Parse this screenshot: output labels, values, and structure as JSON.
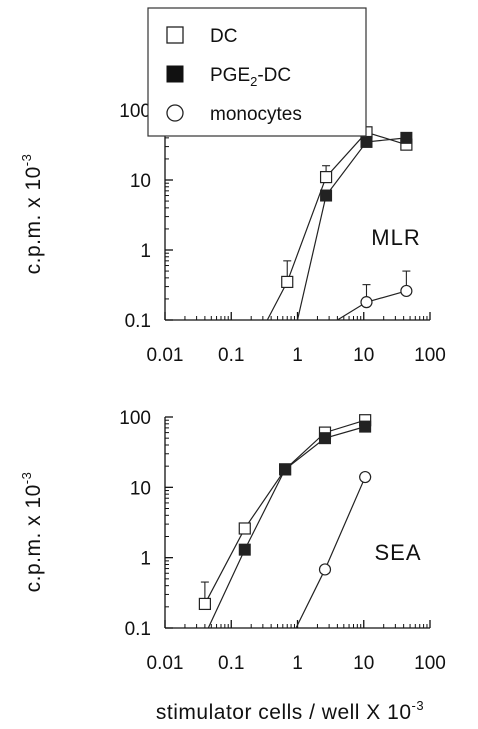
{
  "chart_data": [
    {
      "type": "line",
      "panel_label": "MLR",
      "scale": {
        "x": "log",
        "y": "log"
      },
      "xlim": [
        0.01,
        100
      ],
      "ylim": [
        0.1,
        100
      ],
      "x_ticks": [
        "0.01",
        "0.1",
        "1",
        "10",
        "100"
      ],
      "y_ticks": [
        "0.1",
        "1",
        "10",
        "100"
      ],
      "ylabel": {
        "base": "c.p.m. x 10",
        "sup": "-3"
      },
      "legend": {
        "placement": "top-left",
        "entries": [
          {
            "label": "DC",
            "marker": "open-square"
          },
          {
            "label_parts": [
              "PGE",
              "2",
              "-DC"
            ],
            "marker": "filled-square"
          },
          {
            "label": "monocytes",
            "marker": "open-circle"
          }
        ]
      },
      "series": [
        {
          "name": "DC",
          "marker": "open-square",
          "x": [
            0.35,
            0.7,
            2.7,
            11,
            44
          ],
          "y": [
            0.1,
            0.35,
            11,
            48,
            32
          ],
          "error_up": [
            null,
            0.7,
            16,
            null,
            null
          ]
        },
        {
          "name": "PGE2-DC",
          "marker": "filled-square",
          "x": [
            1,
            2.7,
            11,
            44
          ],
          "y": [
            0.1,
            6,
            35,
            40
          ],
          "error_up": [
            null,
            null,
            null,
            null
          ]
        },
        {
          "name": "monocytes",
          "marker": "open-circle",
          "x": [
            4,
            11,
            44
          ],
          "y": [
            0.1,
            0.18,
            0.26
          ],
          "error_up": [
            null,
            0.32,
            0.5
          ]
        }
      ]
    },
    {
      "type": "line",
      "panel_label": "SEA",
      "scale": {
        "x": "log",
        "y": "log"
      },
      "xlim": [
        0.01,
        100
      ],
      "ylim": [
        0.1,
        100
      ],
      "x_ticks": [
        "0.01",
        "0.1",
        "1",
        "10",
        "100"
      ],
      "y_ticks": [
        "0.1",
        "1",
        "10",
        "100"
      ],
      "xlabel": {
        "base": "stimulator cells / well X 10",
        "sup": "-3"
      },
      "ylabel": {
        "base": "c.p.m. x 10",
        "sup": "-3"
      },
      "series": [
        {
          "name": "DC",
          "marker": "open-square",
          "x": [
            0.04,
            0.16,
            0.65,
            2.6,
            10.5
          ],
          "y": [
            0.22,
            2.6,
            18,
            60,
            90
          ],
          "error_up": [
            0.45,
            null,
            null,
            null,
            null
          ]
        },
        {
          "name": "PGE2-DC",
          "marker": "filled-square",
          "x": [
            0.045,
            0.16,
            0.65,
            2.6,
            10.5
          ],
          "y": [
            0.1,
            1.3,
            18,
            50,
            73
          ],
          "error_up": [
            null,
            null,
            null,
            null,
            null
          ]
        },
        {
          "name": "monocytes",
          "marker": "open-circle",
          "x": [
            0.95,
            2.6,
            10.5
          ],
          "y": [
            0.1,
            0.68,
            14
          ],
          "error_up": [
            null,
            null,
            null
          ]
        }
      ]
    }
  ]
}
